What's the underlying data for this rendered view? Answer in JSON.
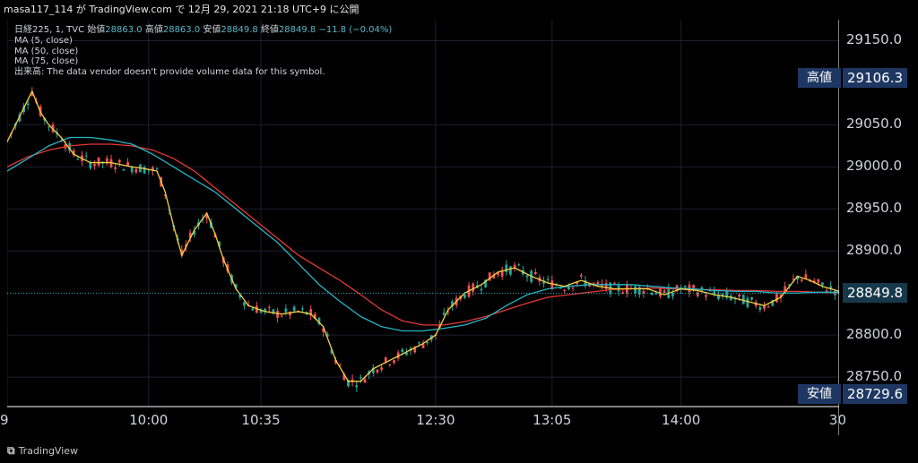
{
  "header": {
    "title": "masa117_114 が TradingView.com で 12月 29, 2021 21:18 UTC+9 に公開"
  },
  "legend": {
    "symbol": "日経225, 1, TVC",
    "ohlc_label_open": "始値",
    "open": "28863.0",
    "ohlc_label_high": "高値",
    "high": "28863.0",
    "ohlc_label_low": "安値",
    "low": "28849.8",
    "ohlc_label_close": "終値",
    "close": "28849.8",
    "change": "−11.8 (−0.04%)",
    "ma5": "MA (5, close)",
    "ma50": "MA (50, close)",
    "ma75": "MA (75, close)",
    "volume_note": "出来高: The data vendor doesn't provide volume data for this symbol."
  },
  "markers": {
    "high_label": "高値",
    "high_value": "29106.3",
    "low_label": "安値",
    "low_value": "28729.6",
    "last_value": "28849.8"
  },
  "watermark": {
    "text": "TradingView"
  },
  "colors": {
    "up": "#ef5350",
    "down": "#26a69a",
    "ma5": "#f5d142",
    "ma50": "#26b5c6",
    "ma75": "#e53935",
    "grid": "#1c2030",
    "label_bg": "#1e3762"
  },
  "chart_data": {
    "type": "line",
    "y_ticks": [
      "29150.0",
      "29050.0",
      "29000.0",
      "28950.0",
      "28900.0",
      "28800.0",
      "28750.0"
    ],
    "y_tick_values": [
      29150,
      29050,
      29000,
      28950,
      28900,
      28800,
      28750
    ],
    "ylim": [
      28715,
      29175
    ],
    "x_ticks": [
      "9",
      "10:00",
      "10:35",
      "12:30",
      "13:05",
      "14:00",
      "30"
    ],
    "x_tick_index": [
      0,
      34,
      61,
      103,
      131,
      162,
      200
    ],
    "x_range": [
      0,
      200
    ],
    "grid": true,
    "ma5_anchors": [
      [
        0,
        29030
      ],
      [
        3,
        29060
      ],
      [
        6,
        29090
      ],
      [
        8,
        29065
      ],
      [
        10,
        29050
      ],
      [
        13,
        29035
      ],
      [
        16,
        29015
      ],
      [
        20,
        29005
      ],
      [
        25,
        29005
      ],
      [
        30,
        29000
      ],
      [
        33,
        28998
      ],
      [
        36,
        28995
      ],
      [
        38,
        28970
      ],
      [
        40,
        28930
      ],
      [
        42,
        28895
      ],
      [
        45,
        28925
      ],
      [
        48,
        28945
      ],
      [
        50,
        28920
      ],
      [
        52,
        28890
      ],
      [
        55,
        28855
      ],
      [
        58,
        28835
      ],
      [
        62,
        28828
      ],
      [
        66,
        28825
      ],
      [
        70,
        28828
      ],
      [
        73,
        28825
      ],
      [
        76,
        28810
      ],
      [
        79,
        28770
      ],
      [
        82,
        28745
      ],
      [
        85,
        28745
      ],
      [
        88,
        28760
      ],
      [
        92,
        28770
      ],
      [
        96,
        28780
      ],
      [
        100,
        28790
      ],
      [
        103,
        28800
      ],
      [
        106,
        28830
      ],
      [
        110,
        28850
      ],
      [
        114,
        28860
      ],
      [
        118,
        28875
      ],
      [
        122,
        28880
      ],
      [
        126,
        28870
      ],
      [
        130,
        28862
      ],
      [
        134,
        28858
      ],
      [
        138,
        28865
      ],
      [
        142,
        28858
      ],
      [
        146,
        28855
      ],
      [
        150,
        28855
      ],
      [
        154,
        28855
      ],
      [
        158,
        28848
      ],
      [
        162,
        28855
      ],
      [
        166,
        28853
      ],
      [
        170,
        28848
      ],
      [
        174,
        28845
      ],
      [
        178,
        28840
      ],
      [
        182,
        28835
      ],
      [
        186,
        28845
      ],
      [
        190,
        28870
      ],
      [
        193,
        28865
      ],
      [
        196,
        28858
      ],
      [
        200,
        28852
      ]
    ],
    "ma50_anchors": [
      [
        0,
        28995
      ],
      [
        5,
        29010
      ],
      [
        10,
        29025
      ],
      [
        15,
        29035
      ],
      [
        20,
        29035
      ],
      [
        25,
        29032
      ],
      [
        30,
        29027
      ],
      [
        35,
        29015
      ],
      [
        40,
        29000
      ],
      [
        45,
        28985
      ],
      [
        50,
        28970
      ],
      [
        55,
        28950
      ],
      [
        60,
        28930
      ],
      [
        65,
        28910
      ],
      [
        70,
        28885
      ],
      [
        75,
        28860
      ],
      [
        80,
        28840
      ],
      [
        85,
        28822
      ],
      [
        90,
        28810
      ],
      [
        95,
        28805
      ],
      [
        100,
        28805
      ],
      [
        105,
        28808
      ],
      [
        110,
        28812
      ],
      [
        115,
        28820
      ],
      [
        120,
        28835
      ],
      [
        125,
        28848
      ],
      [
        130,
        28855
      ],
      [
        135,
        28858
      ],
      [
        140,
        28860
      ],
      [
        145,
        28860
      ],
      [
        150,
        28860
      ],
      [
        155,
        28858
      ],
      [
        160,
        28856
      ],
      [
        165,
        28855
      ],
      [
        170,
        28853
      ],
      [
        175,
        28852
      ],
      [
        180,
        28852
      ],
      [
        185,
        28850
      ],
      [
        190,
        28850
      ],
      [
        195,
        28851
      ],
      [
        200,
        28851
      ]
    ],
    "ma75_anchors": [
      [
        0,
        29000
      ],
      [
        5,
        29012
      ],
      [
        10,
        29020
      ],
      [
        15,
        29025
      ],
      [
        20,
        29027
      ],
      [
        25,
        29027
      ],
      [
        30,
        29025
      ],
      [
        35,
        29020
      ],
      [
        40,
        29010
      ],
      [
        45,
        28995
      ],
      [
        50,
        28975
      ],
      [
        55,
        28955
      ],
      [
        60,
        28935
      ],
      [
        65,
        28915
      ],
      [
        70,
        28895
      ],
      [
        75,
        28880
      ],
      [
        80,
        28865
      ],
      [
        85,
        28848
      ],
      [
        90,
        28830
      ],
      [
        95,
        28817
      ],
      [
        100,
        28812
      ],
      [
        105,
        28812
      ],
      [
        110,
        28816
      ],
      [
        115,
        28822
      ],
      [
        120,
        28830
      ],
      [
        125,
        28838
      ],
      [
        130,
        28845
      ],
      [
        135,
        28848
      ],
      [
        140,
        28851
      ],
      [
        145,
        28854
      ],
      [
        150,
        28855
      ],
      [
        155,
        28856
      ],
      [
        160,
        28855
      ],
      [
        165,
        28854
      ],
      [
        170,
        28854
      ],
      [
        175,
        28853
      ],
      [
        180,
        28853
      ],
      [
        185,
        28852
      ],
      [
        190,
        28852
      ],
      [
        195,
        28851
      ],
      [
        200,
        28850
      ]
    ]
  }
}
